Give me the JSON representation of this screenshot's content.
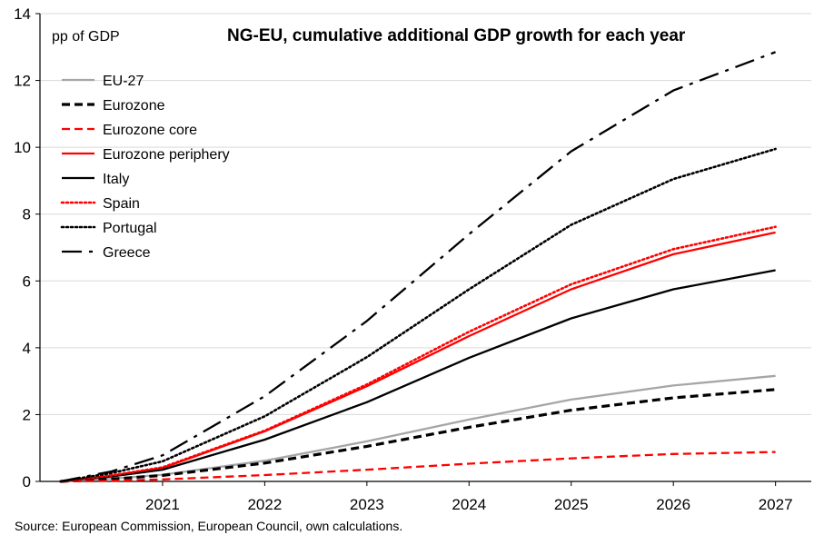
{
  "chart_data": {
    "type": "line",
    "title": "NG-EU, cumulative additional GDP growth for each year",
    "ylabel": "pp of GDP",
    "xlabel": "",
    "ylim": [
      0,
      14
    ],
    "yticks": [
      0,
      2,
      4,
      6,
      8,
      10,
      12,
      14
    ],
    "ytick_labels": [
      "0",
      "2",
      "4",
      "6",
      "8",
      "10",
      "12",
      "14"
    ],
    "x": [
      2020,
      2020.5,
      2021,
      2022,
      2023,
      2024,
      2025,
      2026,
      2027
    ],
    "xlim": [
      2019.8,
      2027.35
    ],
    "xticks": [
      2021,
      2022,
      2023,
      2024,
      2025,
      2026,
      2027
    ],
    "xtick_labels": [
      "2021",
      "2022",
      "2023",
      "2024",
      "2025",
      "2026",
      "2027"
    ],
    "grid": true,
    "legend_position": "top-left",
    "series": [
      {
        "name": "EU-27",
        "color": "#a6a6a6",
        "dash": "solid",
        "values": [
          0,
          0.08,
          0.2,
          0.62,
          1.2,
          1.85,
          2.45,
          2.87,
          3.16
        ]
      },
      {
        "name": "Eurozone",
        "color": "#000000",
        "dash": "dashed",
        "values": [
          0,
          0.07,
          0.18,
          0.55,
          1.05,
          1.62,
          2.13,
          2.5,
          2.75
        ]
      },
      {
        "name": "Eurozone core",
        "color": "#ff0000",
        "dash": "dashed",
        "values": [
          0,
          0.02,
          0.06,
          0.19,
          0.35,
          0.53,
          0.69,
          0.82,
          0.88
        ]
      },
      {
        "name": "Eurozone periphery",
        "color": "#ff0000",
        "dash": "solid",
        "values": [
          0,
          0.17,
          0.4,
          1.5,
          2.85,
          4.35,
          5.75,
          6.8,
          7.45
        ]
      },
      {
        "name": "Italy",
        "color": "#000000",
        "dash": "solid",
        "values": [
          0,
          0.15,
          0.35,
          1.25,
          2.37,
          3.7,
          4.88,
          5.75,
          6.32
        ]
      },
      {
        "name": "Spain",
        "color": "#ff0000",
        "dash": "dotted",
        "values": [
          0,
          0.18,
          0.42,
          1.52,
          2.9,
          4.48,
          5.9,
          6.95,
          7.62
        ]
      },
      {
        "name": "Portugal",
        "color": "#000000",
        "dash": "dotted",
        "values": [
          0,
          0.25,
          0.6,
          1.95,
          3.72,
          5.75,
          7.68,
          9.05,
          9.95
        ]
      },
      {
        "name": "Greece",
        "color": "#000000",
        "dash": "dashdot",
        "values": [
          0,
          0.3,
          0.78,
          2.55,
          4.8,
          7.4,
          9.88,
          11.7,
          12.85
        ]
      }
    ]
  },
  "source": "Source: European Commission, European Council, own calculations."
}
